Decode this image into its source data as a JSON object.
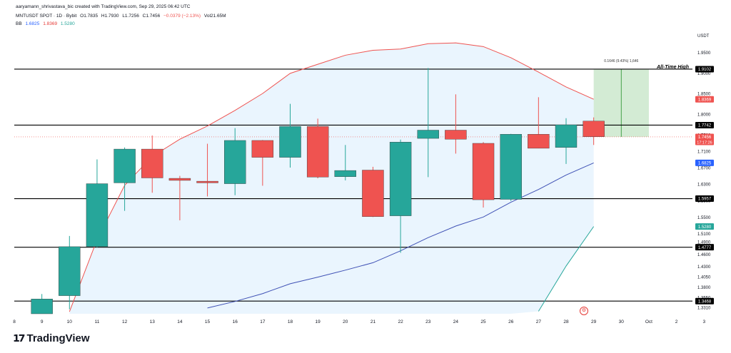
{
  "header": {
    "author_line": "aaryamann_shrivastava_bic created with TradingView.com, Sep 29, 2025 06:42 UTC",
    "symbol": "MNTUSDT SPOT · 1D · Bybit",
    "ohlc": [
      "O1.7835",
      "H1.7930",
      "L1.7256",
      "C1.7456",
      "−0.0379 (−2.13%)",
      "Vol21.65M"
    ],
    "bb_label": "BB",
    "bb_values": [
      "1.6825",
      "1.8369",
      "1.5280"
    ],
    "bb_colors": [
      "#2962ff",
      "#e53935",
      "#26a69a"
    ]
  },
  "currency": "USDT",
  "brand": "TradingView",
  "colors": {
    "up": "#26a69a",
    "down": "#ef5350",
    "upper_band": "#ef5350",
    "basis": "#3f51b5",
    "lower_band": "#26a69a",
    "band_fill": "#e3f2fd",
    "target_fill": "#c8e6c9",
    "level_line": "#000000"
  },
  "chart_data": {
    "type": "candlestick",
    "x_ticks": [
      "8",
      "9",
      "10",
      "11",
      "12",
      "13",
      "14",
      "15",
      "16",
      "17",
      "18",
      "19",
      "20",
      "21",
      "22",
      "23",
      "24",
      "25",
      "26",
      "27",
      "28",
      "29",
      "30",
      "Oct",
      "2",
      "3"
    ],
    "y_ticks": [
      "1.9500",
      "1.9000",
      "1.8500",
      "1.8000",
      "1.7500",
      "1.7100",
      "1.6700",
      "1.6300",
      "1.5900",
      "1.5500",
      "1.5100",
      "1.4900",
      "1.4600",
      "1.4300",
      "1.4050",
      "1.3800",
      "1.3550",
      "1.3310"
    ],
    "ylim": [
      1.316,
      1.995
    ],
    "candles": [
      {
        "x": "9",
        "o": 1.316,
        "h": 1.364,
        "l": 1.316,
        "c": 1.352
      },
      {
        "x": "10",
        "o": 1.36,
        "h": 1.505,
        "l": 1.327,
        "c": 1.479
      },
      {
        "x": "11",
        "o": 1.479,
        "h": 1.691,
        "l": 1.477,
        "c": 1.632
      },
      {
        "x": "12",
        "o": 1.634,
        "h": 1.72,
        "l": 1.566,
        "c": 1.716
      },
      {
        "x": "13",
        "o": 1.716,
        "h": 1.749,
        "l": 1.61,
        "c": 1.646
      },
      {
        "x": "14",
        "o": 1.645,
        "h": 1.651,
        "l": 1.543,
        "c": 1.64
      },
      {
        "x": "15",
        "o": 1.638,
        "h": 1.729,
        "l": 1.601,
        "c": 1.634
      },
      {
        "x": "16",
        "o": 1.632,
        "h": 1.767,
        "l": 1.604,
        "c": 1.737
      },
      {
        "x": "17",
        "o": 1.737,
        "h": 1.738,
        "l": 1.627,
        "c": 1.696
      },
      {
        "x": "18",
        "o": 1.696,
        "h": 1.826,
        "l": 1.671,
        "c": 1.771
      },
      {
        "x": "19",
        "o": 1.771,
        "h": 1.79,
        "l": 1.645,
        "c": 1.648
      },
      {
        "x": "20",
        "o": 1.649,
        "h": 1.726,
        "l": 1.64,
        "c": 1.664
      },
      {
        "x": "21",
        "o": 1.665,
        "h": 1.673,
        "l": 1.551,
        "c": 1.552
      },
      {
        "x": "22",
        "o": 1.554,
        "h": 1.739,
        "l": 1.464,
        "c": 1.733
      },
      {
        "x": "23",
        "o": 1.742,
        "h": 1.913,
        "l": 1.648,
        "c": 1.762
      },
      {
        "x": "24",
        "o": 1.762,
        "h": 1.849,
        "l": 1.705,
        "c": 1.74
      },
      {
        "x": "25",
        "o": 1.73,
        "h": 1.733,
        "l": 1.574,
        "c": 1.593
      },
      {
        "x": "26",
        "o": 1.594,
        "h": 1.753,
        "l": 1.59,
        "c": 1.752
      },
      {
        "x": "27",
        "o": 1.752,
        "h": 1.842,
        "l": 1.718,
        "c": 1.718
      },
      {
        "x": "28",
        "o": 1.72,
        "h": 1.791,
        "l": 1.68,
        "c": 1.775
      },
      {
        "x": "29",
        "o": 1.784,
        "h": 1.793,
        "l": 1.726,
        "c": 1.746
      }
    ],
    "bollinger": {
      "x": [
        "10",
        "11",
        "12",
        "13",
        "14",
        "15",
        "16",
        "17",
        "18",
        "19",
        "20",
        "21",
        "22",
        "23",
        "24",
        "25",
        "26",
        "27",
        "28",
        "29"
      ],
      "upper": [
        1.321,
        1.496,
        1.628,
        1.698,
        1.74,
        1.772,
        1.81,
        1.851,
        1.9,
        1.922,
        1.944,
        1.956,
        1.959,
        1.972,
        1.974,
        1.965,
        1.938,
        1.903,
        1.867,
        1.837
      ],
      "basis": [
        null,
        null,
        null,
        null,
        null,
        1.33,
        1.346,
        1.365,
        1.389,
        1.405,
        1.422,
        1.44,
        1.469,
        1.501,
        1.529,
        1.551,
        1.587,
        1.618,
        1.653,
        1.6825
      ],
      "lower": [
        null,
        null,
        null,
        null,
        null,
        null,
        null,
        null,
        null,
        null,
        null,
        null,
        null,
        null,
        null,
        null,
        null,
        1.322,
        1.432,
        1.528
      ]
    },
    "levels": [
      1.9102,
      1.7742,
      1.5957,
      1.4777,
      1.3468
    ],
    "annotation": {
      "text": "All-Time High",
      "x": "29",
      "value": 1.9102
    },
    "price_range_tool": {
      "label": "0.1646 (9.43%) 1,646",
      "x_start": "29",
      "x_end": "Oct",
      "from": 1.7456,
      "to": 1.9102
    },
    "current_price": {
      "value": "1.7456",
      "countdown": "17:17:26"
    },
    "axis_badges": [
      {
        "value": 1.9102,
        "text": "1.9102",
        "bg": "#000000"
      },
      {
        "value": 1.8369,
        "text": "1.8369",
        "bg": "#ef5350"
      },
      {
        "value": 1.7742,
        "text": "1.7742",
        "bg": "#000000"
      },
      {
        "value": 1.6825,
        "text": "1.6825",
        "bg": "#2962ff"
      },
      {
        "value": 1.5957,
        "text": "1.5957",
        "bg": "#000000"
      },
      {
        "value": 1.528,
        "text": "1.5280",
        "bg": "#26a69a"
      },
      {
        "value": 1.4777,
        "text": "1.4777",
        "bg": "#000000"
      },
      {
        "value": 1.3468,
        "text": "1.3468",
        "bg": "#000000"
      }
    ]
  }
}
